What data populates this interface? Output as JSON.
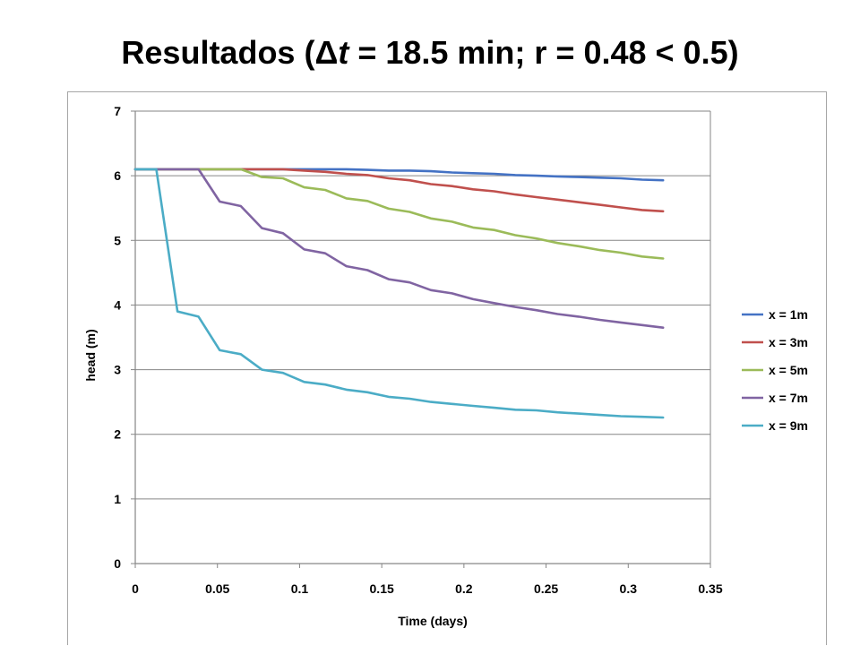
{
  "slide": {
    "title_prefix": "Resultados (",
    "title_delta": "Δ",
    "title_var": "t",
    "title_suffix": " = 18.5 min; r = 0.48 < 0.5)"
  },
  "chart_data": {
    "type": "line",
    "title": "",
    "xlabel": "Time (days)",
    "ylabel": "head (m)",
    "xlim": [
      0,
      0.35
    ],
    "ylim": [
      0,
      7
    ],
    "xticks": [
      "0",
      "0.05",
      "0.1",
      "0.15",
      "0.2",
      "0.25",
      "0.3",
      "0.35"
    ],
    "yticks": [
      "0",
      "1",
      "2",
      "3",
      "4",
      "5",
      "6",
      "7"
    ],
    "grid": "horizontal",
    "legend_position": "right",
    "series": [
      {
        "name": "x = 1m",
        "color": "#4472C4",
        "x": [
          0,
          0.0128,
          0.0257,
          0.0385,
          0.0514,
          0.0642,
          0.0771,
          0.0899,
          0.1028,
          0.1156,
          0.1285,
          0.1413,
          0.1542,
          0.167,
          0.1799,
          0.1927,
          0.2056,
          0.2184,
          0.2313,
          0.2441,
          0.257,
          0.2698,
          0.2827,
          0.2955,
          0.3084,
          0.3212
        ],
        "y": [
          6.1,
          6.1,
          6.1,
          6.1,
          6.1,
          6.1,
          6.1,
          6.1,
          6.1,
          6.1,
          6.1,
          6.09,
          6.08,
          6.08,
          6.07,
          6.05,
          6.04,
          6.03,
          6.01,
          6.0,
          5.99,
          5.98,
          5.97,
          5.96,
          5.94,
          5.93
        ]
      },
      {
        "name": "x = 3m",
        "color": "#C0504D",
        "x": [
          0,
          0.0128,
          0.0257,
          0.0385,
          0.0514,
          0.0642,
          0.0771,
          0.0899,
          0.1028,
          0.1156,
          0.1285,
          0.1413,
          0.1542,
          0.167,
          0.1799,
          0.1927,
          0.2056,
          0.2184,
          0.2313,
          0.2441,
          0.257,
          0.2698,
          0.2827,
          0.2955,
          0.3084,
          0.3212
        ],
        "y": [
          6.1,
          6.1,
          6.1,
          6.1,
          6.1,
          6.1,
          6.1,
          6.1,
          6.08,
          6.06,
          6.03,
          6.01,
          5.96,
          5.93,
          5.87,
          5.84,
          5.79,
          5.76,
          5.71,
          5.67,
          5.63,
          5.59,
          5.55,
          5.51,
          5.47,
          5.45
        ]
      },
      {
        "name": "x = 5m",
        "color": "#9BBB59",
        "x": [
          0,
          0.0128,
          0.0257,
          0.0385,
          0.0514,
          0.0642,
          0.0771,
          0.0899,
          0.1028,
          0.1156,
          0.1285,
          0.1413,
          0.1542,
          0.167,
          0.1799,
          0.1927,
          0.2056,
          0.2184,
          0.2313,
          0.2441,
          0.257,
          0.2698,
          0.2827,
          0.2955,
          0.3084,
          0.3212
        ],
        "y": [
          6.1,
          6.1,
          6.1,
          6.1,
          6.1,
          6.1,
          5.98,
          5.96,
          5.82,
          5.78,
          5.65,
          5.61,
          5.49,
          5.44,
          5.34,
          5.29,
          5.2,
          5.16,
          5.08,
          5.03,
          4.96,
          4.91,
          4.85,
          4.81,
          4.75,
          4.72
        ]
      },
      {
        "name": "x = 7m",
        "color": "#8064A2",
        "x": [
          0,
          0.0128,
          0.0257,
          0.0385,
          0.0514,
          0.0642,
          0.0771,
          0.0899,
          0.1028,
          0.1156,
          0.1285,
          0.1413,
          0.1542,
          0.167,
          0.1799,
          0.1927,
          0.2056,
          0.2184,
          0.2313,
          0.2441,
          0.257,
          0.2698,
          0.2827,
          0.2955,
          0.3084,
          0.3212
        ],
        "y": [
          6.1,
          6.1,
          6.1,
          6.1,
          5.6,
          5.53,
          5.19,
          5.11,
          4.86,
          4.8,
          4.6,
          4.54,
          4.4,
          4.35,
          4.23,
          4.18,
          4.09,
          4.03,
          3.97,
          3.92,
          3.86,
          3.82,
          3.77,
          3.73,
          3.69,
          3.65
        ]
      },
      {
        "name": "x = 9m",
        "color": "#4BACC6",
        "x": [
          0,
          0.0128,
          0.0257,
          0.0385,
          0.0514,
          0.0642,
          0.0771,
          0.0899,
          0.1028,
          0.1156,
          0.1285,
          0.1413,
          0.1542,
          0.167,
          0.1799,
          0.1927,
          0.2056,
          0.2184,
          0.2313,
          0.2441,
          0.257,
          0.2698,
          0.2827,
          0.2955,
          0.3084,
          0.3212
        ],
        "y": [
          6.1,
          6.1,
          3.9,
          3.82,
          3.3,
          3.24,
          3.0,
          2.95,
          2.81,
          2.77,
          2.69,
          2.65,
          2.58,
          2.55,
          2.5,
          2.47,
          2.44,
          2.41,
          2.38,
          2.37,
          2.34,
          2.32,
          2.3,
          2.28,
          2.27,
          2.26
        ]
      }
    ]
  }
}
